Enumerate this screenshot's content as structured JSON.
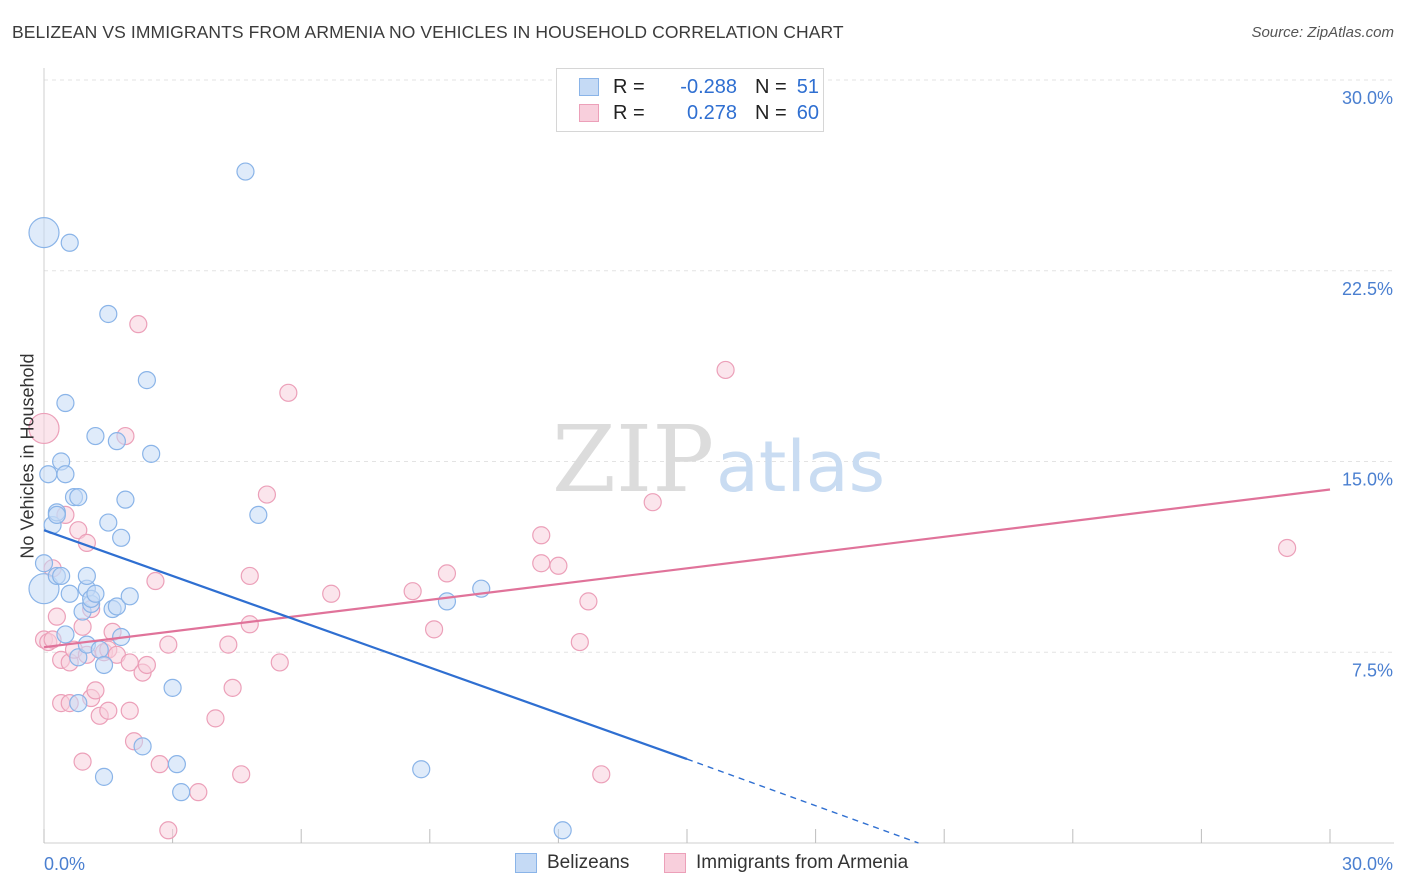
{
  "title": "BELIZEAN VS IMMIGRANTS FROM ARMENIA NO VEHICLES IN HOUSEHOLD CORRELATION CHART",
  "source": "Source: ZipAtlas.com",
  "watermark": {
    "zip": "ZIP",
    "atlas": "atlas"
  },
  "legend": {
    "r_label": "R =",
    "n_label": "N =",
    "series": [
      {
        "name": "Belizeans",
        "r": "-0.288",
        "n": "51",
        "color": "#8ab4e8",
        "fill": "#c5daf5"
      },
      {
        "name": "Immigrants from Armenia",
        "r": "0.278",
        "n": "60",
        "color": "#eca0b9",
        "fill": "#f8cfdc"
      }
    ]
  },
  "colors": {
    "blue_line": "#2f6fd1",
    "pink_line": "#e0739a",
    "tick_text": "#4a7fd0",
    "grid": "#e3e3e3"
  },
  "chart_data": {
    "type": "scatter",
    "title": "BELIZEAN VS IMMIGRANTS FROM ARMENIA NO VEHICLES IN HOUSEHOLD CORRELATION CHART",
    "xlabel": "",
    "ylabel": "No Vehicles in Household",
    "xlim": [
      0,
      30
    ],
    "ylim": [
      0,
      30
    ],
    "x_tick_labels": [
      "0.0%",
      "30.0%"
    ],
    "y_ticks": [
      7.5,
      15.0,
      22.5,
      30.0
    ],
    "y_tick_labels": [
      "7.5%",
      "15.0%",
      "22.5%",
      "30.0%"
    ],
    "grid": true,
    "legend_position": "top-center",
    "series": [
      {
        "name": "Belizeans",
        "r": -0.288,
        "n": 51,
        "points": [
          [
            0.0,
            10.0
          ],
          [
            0.0,
            11.0
          ],
          [
            0.0,
            24.0
          ],
          [
            0.1,
            14.5
          ],
          [
            0.2,
            12.5
          ],
          [
            0.3,
            13.0
          ],
          [
            0.3,
            10.5
          ],
          [
            0.4,
            15.0
          ],
          [
            0.4,
            10.5
          ],
          [
            0.5,
            14.5
          ],
          [
            0.5,
            17.3
          ],
          [
            0.5,
            8.2
          ],
          [
            0.6,
            23.6
          ],
          [
            0.6,
            9.8
          ],
          [
            0.7,
            13.6
          ],
          [
            0.8,
            13.6
          ],
          [
            0.8,
            7.3
          ],
          [
            0.8,
            5.5
          ],
          [
            0.9,
            9.1
          ],
          [
            1.0,
            10.0
          ],
          [
            1.0,
            7.8
          ],
          [
            1.1,
            9.4
          ],
          [
            1.1,
            9.6
          ],
          [
            1.2,
            16.0
          ],
          [
            1.2,
            9.8
          ],
          [
            1.3,
            7.6
          ],
          [
            1.4,
            2.6
          ],
          [
            1.4,
            7.0
          ],
          [
            1.5,
            20.8
          ],
          [
            1.5,
            12.6
          ],
          [
            1.6,
            9.2
          ],
          [
            1.7,
            15.8
          ],
          [
            1.7,
            9.3
          ],
          [
            1.8,
            12.0
          ],
          [
            1.9,
            13.5
          ],
          [
            2.0,
            9.7
          ],
          [
            2.3,
            3.8
          ],
          [
            2.4,
            18.2
          ],
          [
            2.5,
            15.3
          ],
          [
            3.0,
            6.1
          ],
          [
            3.1,
            3.1
          ],
          [
            3.2,
            2.0
          ],
          [
            4.7,
            26.4
          ],
          [
            5.0,
            12.9
          ],
          [
            8.8,
            2.9
          ],
          [
            9.4,
            9.5
          ],
          [
            10.2,
            10.0
          ],
          [
            12.1,
            0.5
          ],
          [
            1.0,
            10.5
          ],
          [
            1.8,
            8.1
          ],
          [
            0.3,
            12.9
          ]
        ]
      },
      {
        "name": "Immigrants from Armenia",
        "r": 0.278,
        "n": 60,
        "points": [
          [
            0.0,
            16.3
          ],
          [
            0.0,
            8.0
          ],
          [
            0.1,
            7.9
          ],
          [
            0.2,
            10.8
          ],
          [
            0.3,
            8.9
          ],
          [
            0.4,
            5.5
          ],
          [
            0.4,
            7.2
          ],
          [
            0.5,
            12.9
          ],
          [
            0.6,
            5.5
          ],
          [
            0.6,
            7.1
          ],
          [
            0.7,
            7.6
          ],
          [
            0.8,
            12.3
          ],
          [
            0.9,
            8.5
          ],
          [
            0.9,
            3.2
          ],
          [
            1.0,
            11.8
          ],
          [
            1.0,
            7.4
          ],
          [
            1.1,
            5.7
          ],
          [
            1.1,
            9.2
          ],
          [
            1.2,
            6.0
          ],
          [
            1.3,
            5.0
          ],
          [
            1.4,
            7.5
          ],
          [
            1.5,
            7.6
          ],
          [
            1.5,
            5.2
          ],
          [
            1.6,
            8.3
          ],
          [
            1.7,
            7.4
          ],
          [
            1.9,
            16.0
          ],
          [
            2.0,
            5.2
          ],
          [
            2.0,
            7.1
          ],
          [
            2.1,
            4.0
          ],
          [
            2.2,
            20.4
          ],
          [
            2.3,
            6.7
          ],
          [
            2.4,
            7.0
          ],
          [
            2.6,
            10.3
          ],
          [
            2.7,
            3.1
          ],
          [
            2.9,
            0.5
          ],
          [
            2.9,
            7.8
          ],
          [
            3.6,
            2.0
          ],
          [
            4.0,
            4.9
          ],
          [
            4.3,
            7.8
          ],
          [
            4.4,
            6.1
          ],
          [
            4.6,
            2.7
          ],
          [
            4.8,
            8.6
          ],
          [
            4.8,
            10.5
          ],
          [
            5.2,
            13.7
          ],
          [
            5.5,
            7.1
          ],
          [
            5.7,
            17.7
          ],
          [
            6.7,
            9.8
          ],
          [
            8.6,
            9.9
          ],
          [
            9.1,
            8.4
          ],
          [
            9.4,
            10.6
          ],
          [
            11.6,
            12.1
          ],
          [
            11.6,
            11.0
          ],
          [
            12.0,
            10.9
          ],
          [
            12.5,
            7.9
          ],
          [
            12.7,
            9.5
          ],
          [
            13.0,
            2.7
          ],
          [
            14.2,
            13.4
          ],
          [
            15.9,
            18.6
          ],
          [
            29.0,
            11.6
          ],
          [
            0.2,
            8.0
          ]
        ]
      }
    ],
    "trend_lines": [
      {
        "series": "Belizeans",
        "from": [
          0,
          12.3
        ],
        "to": [
          15.0,
          3.3
        ],
        "dashed_to": [
          20.4,
          0.0
        ]
      },
      {
        "series": "Immigrants from Armenia",
        "from": [
          0,
          7.7
        ],
        "to": [
          30.0,
          13.9
        ]
      }
    ]
  }
}
